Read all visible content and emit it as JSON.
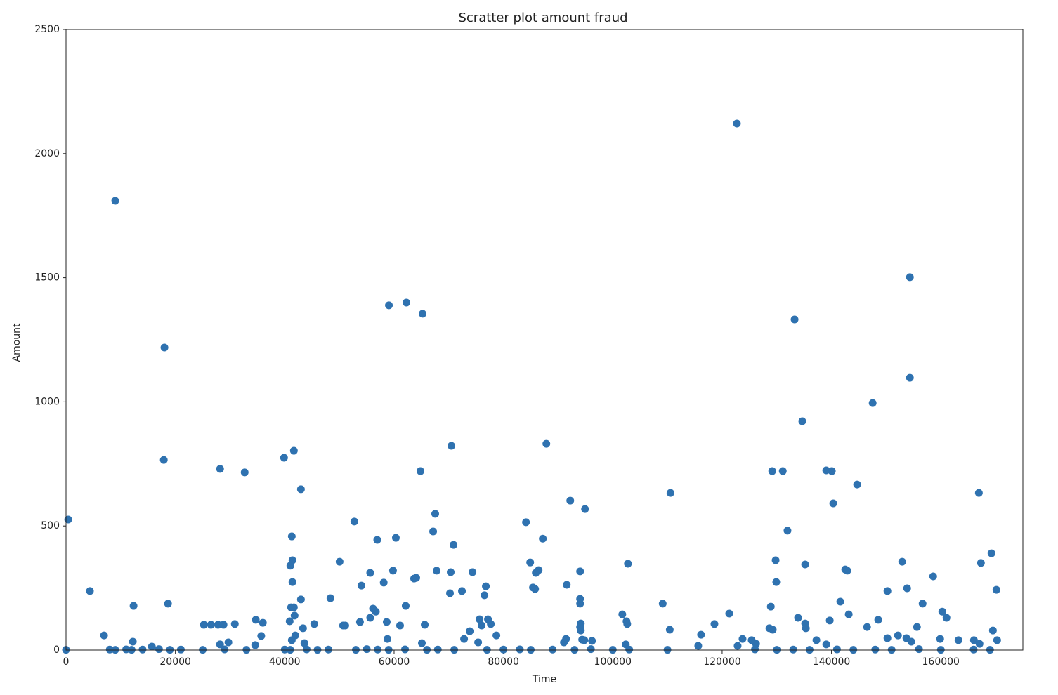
{
  "chart_data": {
    "type": "scatter",
    "title": "Scratter plot amount fraud",
    "xlabel": "Time",
    "ylabel": "Amount",
    "color": "#2f72b0",
    "x": [
      400,
      4370,
      9000,
      6950,
      12350,
      12220,
      18000,
      17880,
      18650,
      15700,
      28170,
      32670,
      25200,
      26500,
      27800,
      28800,
      30870,
      28170,
      29700,
      34700,
      36000,
      35700,
      34600,
      39870,
      41670,
      42960,
      41290,
      41410,
      41030,
      41410,
      41160,
      41670,
      40900,
      41800,
      41930,
      41290,
      42960,
      43340,
      43600,
      45400,
      48360,
      50030,
      52730,
      50670,
      51060,
      54020,
      53760,
      55630,
      55630,
      56150,
      56920,
      56660,
      58100,
      59050,
      58650,
      58780,
      59800,
      60320,
      61090,
      62250,
      62120,
      63660,
      64050,
      65210,
      64820,
      65600,
      65080,
      67140,
      67520,
      67780,
      70480,
      70350,
      70870,
      70220,
      72410,
      72800,
      74340,
      73830,
      75370,
      75630,
      76010,
      76780,
      76530,
      77170,
      77690,
      78710,
      84120,
      84890,
      85400,
      85790,
      85920,
      86430,
      87200,
      87850,
      91580,
      92220,
      91450,
      91060,
      94920,
      94020,
      94020,
      94020,
      94150,
      94020,
      94150,
      94400,
      94790,
      96200,
      101740,
      102770,
      102510,
      102640,
      102380,
      109130,
      110550,
      110420,
      122700,
      121290,
      118590,
      116140,
      115630,
      123730,
      122830,
      125400,
      126200,
      128640,
      129260,
      128900,
      129160,
      131090,
      129780,
      129900,
      131950,
      133250,
      134660,
      135180,
      133890,
      135180,
      135310,
      137240,
      139040,
      140060,
      140320,
      139680,
      139040,
      141610,
      142510,
      142890,
      143150,
      144690,
      147530,
      146500,
      148550,
      150230,
      150230,
      152160,
      152930,
      153700,
      153830,
      154340,
      154340,
      154600,
      155630,
      156660,
      158590,
      159870,
      160260,
      161030,
      163220,
      166050,
      166950,
      167330,
      167070,
      169260,
      169520,
      170160,
      170290,
      0,
      8000,
      9000,
      11000,
      12000,
      14000,
      17000,
      19000,
      21000,
      25000,
      29000,
      33000,
      40000,
      41000,
      44000,
      46000,
      48000,
      53000,
      55000,
      57000,
      59000,
      62000,
      66000,
      68000,
      71000,
      77000,
      80000,
      83000,
      85000,
      89000,
      93000,
      96000,
      100000,
      103000,
      110000,
      126000,
      130000,
      133000,
      136000,
      141000,
      144000,
      148000,
      151000,
      156000,
      160000,
      166000,
      169000
    ],
    "values": [
      526,
      238,
      1810,
      59,
      178,
      34,
      1219,
      766,
      187,
      14,
      730,
      716,
      102,
      102,
      102,
      102,
      105,
      23,
      31,
      122,
      110,
      57,
      20,
      775,
      803,
      648,
      458,
      362,
      340,
      274,
      172,
      172,
      116,
      139,
      59,
      40,
      204,
      88,
      28,
      105,
      209,
      356,
      518,
      99,
      99,
      260,
      113,
      311,
      130,
      167,
      444,
      155,
      272,
      1389,
      113,
      45,
      320,
      452,
      99,
      1400,
      178,
      288,
      291,
      1355,
      721,
      102,
      28,
      478,
      549,
      320,
      823,
      314,
      424,
      229,
      238,
      45,
      314,
      76,
      31,
      124,
      99,
      257,
      221,
      124,
      105,
      59,
      515,
      353,
      252,
      246,
      311,
      322,
      449,
      831,
      263,
      602,
      45,
      31,
      568,
      317,
      206,
      187,
      107,
      93,
      79,
      42,
      40,
      37,
      144,
      348,
      116,
      105,
      23,
      187,
      633,
      82,
      2121,
      147,
      105,
      62,
      17,
      45,
      17,
      40,
      25,
      88,
      82,
      175,
      721,
      721,
      362,
      274,
      481,
      1332,
      922,
      345,
      130,
      107,
      88,
      40,
      724,
      721,
      591,
      119,
      23,
      195,
      325,
      320,
      144,
      667,
      995,
      93,
      122,
      238,
      48,
      59,
      356,
      48,
      249,
      1502,
      1097,
      34,
      93,
      187,
      297,
      45,
      155,
      130,
      40,
      40,
      633,
      351,
      25,
      390,
      79,
      243,
      40,
      1,
      2,
      1,
      3,
      1,
      2,
      4,
      1,
      2,
      1,
      3,
      1,
      2,
      1,
      3,
      1,
      2,
      1,
      4,
      2,
      1,
      3,
      1,
      2,
      1,
      1,
      2,
      3,
      1,
      2,
      1,
      4,
      1,
      2,
      1,
      3,
      1,
      2,
      1,
      3,
      1,
      2,
      1,
      4,
      1,
      2,
      1
    ],
    "xlim": [
      0,
      175000
    ],
    "ylim": [
      0,
      2500
    ],
    "xticks": [
      0,
      20000,
      40000,
      60000,
      80000,
      100000,
      120000,
      140000,
      160000
    ],
    "yticks": [
      0,
      500,
      1000,
      1500,
      2000,
      2500
    ]
  }
}
